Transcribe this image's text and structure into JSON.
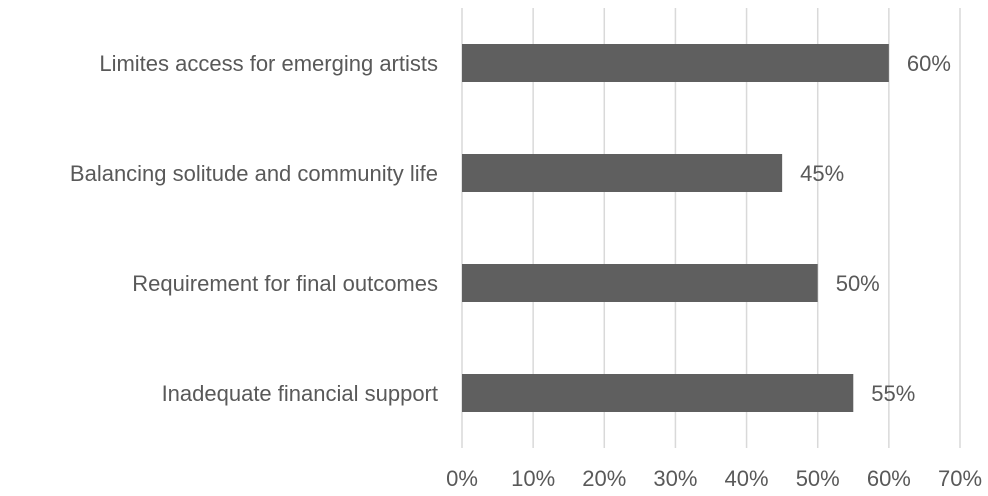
{
  "chart_data": {
    "type": "bar",
    "orientation": "horizontal",
    "title": "",
    "xlabel": "",
    "ylabel": "",
    "categories": [
      "Limites access for emerging artists",
      "Balancing solitude and community life",
      "Requirement for final outcomes",
      "Inadequate financial support"
    ],
    "values": [
      60,
      45,
      50,
      55
    ],
    "value_labels": [
      "60%",
      "45%",
      "50%",
      "55%"
    ],
    "xlim": [
      0,
      70
    ],
    "x_ticks": [
      "0%",
      "10%",
      "20%",
      "30%",
      "40%",
      "50%",
      "60%",
      "70%"
    ],
    "grid": true,
    "legend": "none",
    "colors": {
      "bar": "#5f5f5f",
      "grid": "#d9d9d9",
      "text": "#595959"
    }
  }
}
